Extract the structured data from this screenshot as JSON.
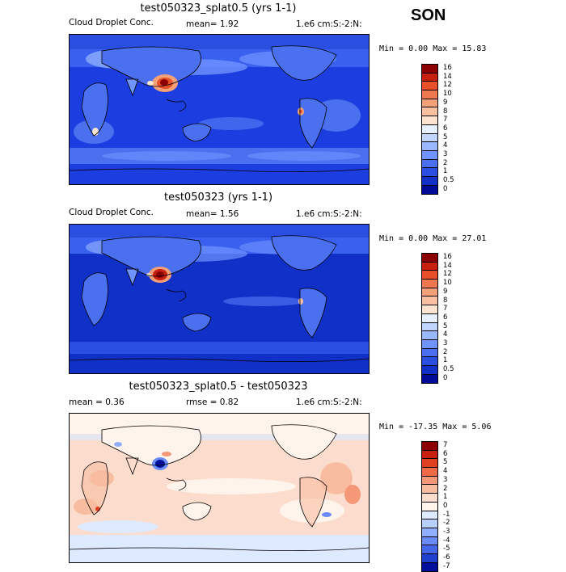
{
  "season": "SON",
  "panels": [
    {
      "title": "test050323_splat0.5 (yrs 1-1)",
      "left_label": "Cloud Droplet Conc.",
      "mid_label": "mean=   1.92",
      "right_label": "1.e6 cm:S:-2:N:",
      "minmax": "Min =   0.00 Max =  15.83",
      "levels": [
        "16",
        "14",
        "12",
        "10",
        "9",
        "8",
        "7",
        "6",
        "5",
        "4",
        "3",
        "2",
        "1",
        "0.5",
        "0"
      ],
      "colors": [
        "#8b0000",
        "#c8200e",
        "#e8502a",
        "#f07850",
        "#f4a078",
        "#f8c0a0",
        "#fce4d0",
        "#e6f0ff",
        "#c0d6ff",
        "#9ab8ff",
        "#7094ff",
        "#4a70f0",
        "#2a4ee0",
        "#1030c8",
        "#000a96"
      ]
    },
    {
      "title": "test050323 (yrs 1-1)",
      "left_label": "Cloud Droplet Conc.",
      "mid_label": "mean=   1.56",
      "right_label": "1.e6 cm:S:-2:N:",
      "minmax": "Min =   0.00 Max =  27.01",
      "levels": [
        "16",
        "14",
        "12",
        "10",
        "9",
        "8",
        "7",
        "6",
        "5",
        "4",
        "3",
        "2",
        "1",
        "0.5",
        "0"
      ],
      "colors": [
        "#8b0000",
        "#c8200e",
        "#e8502a",
        "#f07850",
        "#f4a078",
        "#f8c0a0",
        "#fce4d0",
        "#e6f0ff",
        "#c0d6ff",
        "#9ab8ff",
        "#7094ff",
        "#4a70f0",
        "#2a4ee0",
        "#1030c8",
        "#000a96"
      ]
    },
    {
      "title": "test050323_splat0.5 - test050323",
      "left_label": "mean =   0.36",
      "mid_label": "rmse =   0.82",
      "right_label": "1.e6 cm:S:-2:N:",
      "minmax": "Min = -17.35 Max =   5.06",
      "levels": [
        "7",
        "6",
        "5",
        "4",
        "3",
        "2",
        "1",
        "0",
        "-1",
        "-2",
        "-3",
        "-4",
        "-5",
        "-6",
        "-7"
      ],
      "colors": [
        "#8b0000",
        "#c8200e",
        "#e04020",
        "#f06a48",
        "#f49878",
        "#f8bca0",
        "#fcdccc",
        "#fff4ec",
        "#ddeaff",
        "#b8d0ff",
        "#90b0ff",
        "#6a8cf8",
        "#4466e8",
        "#2040d0",
        "#00109a"
      ]
    }
  ]
}
